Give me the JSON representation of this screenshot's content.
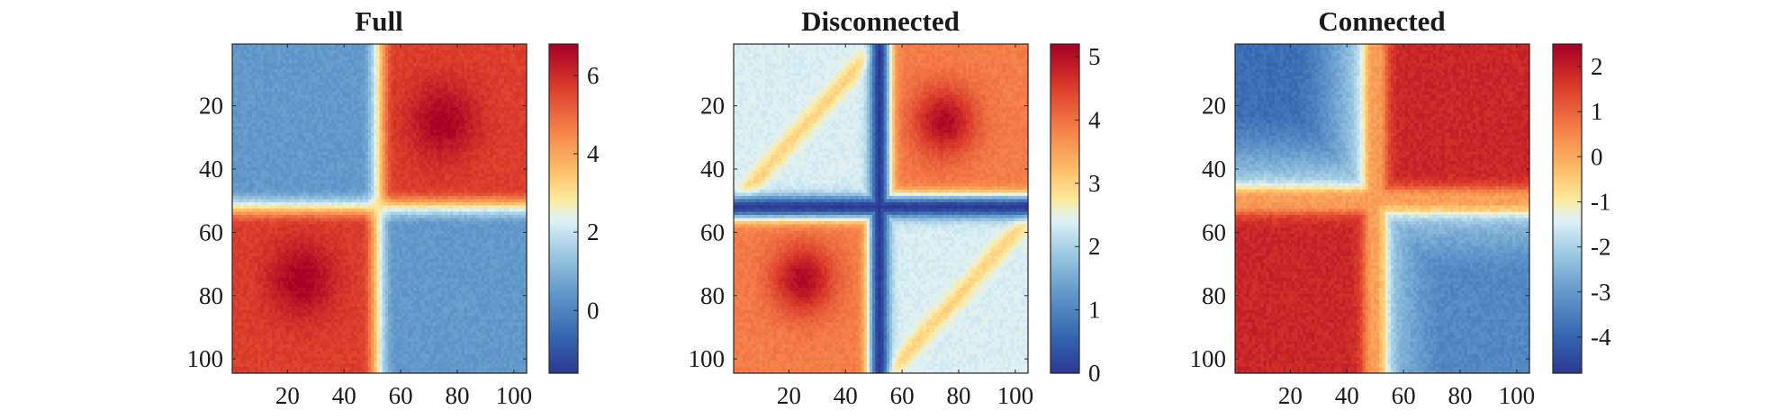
{
  "chart_data": [
    {
      "type": "heatmap",
      "title": "Full",
      "x_range": [
        1,
        104
      ],
      "y_range": [
        1,
        104
      ],
      "xticks": [
        "20",
        "40",
        "60",
        "80",
        "100"
      ],
      "yticks": [
        "20",
        "40",
        "60",
        "80",
        "100"
      ],
      "y_reversed": true,
      "colorbar": {
        "range": [
          -1.6,
          6.8
        ],
        "ticks": [
          "0",
          "2",
          "4",
          "6"
        ]
      },
      "structure": {
        "split_index": 52,
        "low_group_value": 0.5,
        "high_group_value": 5.7,
        "peak_value": 6.8,
        "peak_location": [
          75,
          25
        ],
        "notes": "Two anti-diagonal high blocks (rows 60-104 x cols 1-50 and rows 1-50 x cols 55-104); diagonal blocks low."
      }
    },
    {
      "type": "heatmap",
      "title": "Disconnected",
      "x_range": [
        1,
        104
      ],
      "y_range": [
        1,
        104
      ],
      "xticks": [
        "20",
        "40",
        "60",
        "80",
        "100"
      ],
      "yticks": [
        "20",
        "40",
        "60",
        "80",
        "100"
      ],
      "y_reversed": true,
      "colorbar": {
        "range": [
          0,
          5.2
        ],
        "ticks": [
          "0",
          "1",
          "2",
          "3",
          "4",
          "5"
        ]
      },
      "structure": {
        "split_index": 52,
        "low_group_value": 2.4,
        "high_group_value": 3.9,
        "min_value": 0.05,
        "min_band": "row 52 and column 52",
        "peak_value": 5.1,
        "peak_location": [
          75,
          25
        ],
        "notes": "Dark blue cross at index 52; orange off-diagonal blocks; light diagonal blocks with faint anti-diagonal ridges."
      }
    },
    {
      "type": "heatmap",
      "title": "Connected",
      "x_range": [
        1,
        104
      ],
      "y_range": [
        1,
        104
      ],
      "xticks": [
        "20",
        "40",
        "60",
        "80",
        "100"
      ],
      "yticks": [
        "20",
        "40",
        "60",
        "80",
        "100"
      ],
      "y_reversed": true,
      "colorbar": {
        "range": [
          -4.8,
          2.5
        ],
        "ticks": [
          "2",
          "1",
          "0",
          "-1",
          "-2",
          "-3",
          "-4"
        ]
      },
      "structure": {
        "split_index": 50,
        "low_group_value": -3.8,
        "high_group_value": 1.9,
        "cross_value": 0.2,
        "notes": "Top-left and bottom-right blocks low (blue); off-diagonal blocks high (red); orange cross near index 50."
      }
    }
  ]
}
